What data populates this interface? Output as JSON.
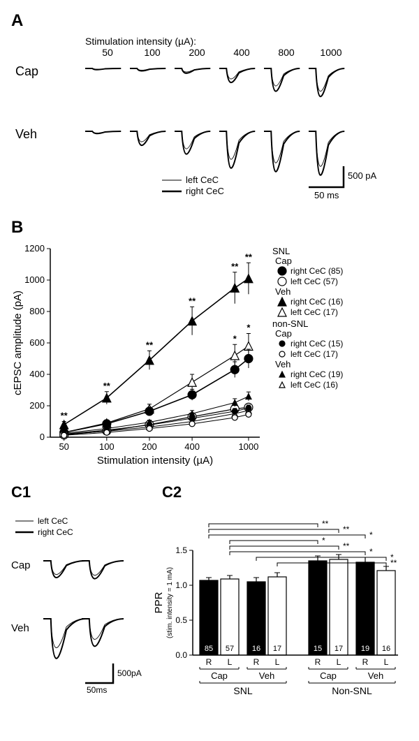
{
  "panelA": {
    "label": "A",
    "stim_header": "Stimulation intensity (µA):",
    "stim_values": [
      "50",
      "100",
      "200",
      "400",
      "800",
      "1000"
    ],
    "row_labels": [
      "Cap",
      "Veh"
    ],
    "legend_thin": "left CeC",
    "legend_thick": "right CeC",
    "scale_y": "500 pA",
    "scale_x": "50 ms",
    "trace_color": "#000000",
    "cap_amps_thin": [
      10,
      20,
      40,
      120,
      200,
      260
    ],
    "cap_amps_thick": [
      14,
      28,
      55,
      160,
      260,
      320
    ],
    "veh_amps_thin": [
      20,
      120,
      200,
      320,
      360,
      400
    ],
    "veh_amps_thick": [
      26,
      160,
      260,
      420,
      460,
      500
    ]
  },
  "panelB": {
    "label": "B",
    "xlabel": "Stimulation intensity (µA)",
    "ylabel": "cEPSC amplitude (pA)",
    "x_ticks": [
      50,
      100,
      200,
      400,
      1000
    ],
    "x_tick_labels": [
      "50",
      "100",
      "200",
      "400",
      "1000"
    ],
    "xlim": [
      40,
      1200
    ],
    "y_ticks": [
      0,
      200,
      400,
      600,
      800,
      1000,
      1200
    ],
    "ylim": [
      0,
      1200
    ],
    "axis_color": "#000000",
    "series": [
      {
        "name": "SNL Veh right",
        "marker": "triangle",
        "fill": "#000000",
        "lw": 1.6,
        "data": [
          [
            50,
            80
          ],
          [
            100,
            250
          ],
          [
            200,
            490
          ],
          [
            400,
            740
          ],
          [
            800,
            950
          ],
          [
            1000,
            1010
          ]
        ],
        "err": [
          20,
          40,
          60,
          90,
          100,
          100
        ],
        "sig": [
          "**",
          "**",
          "**",
          "**",
          "**",
          "**"
        ]
      },
      {
        "name": "SNL Veh left",
        "marker": "triangle",
        "fill": "#ffffff",
        "lw": 1.2,
        "data": [
          [
            50,
            30
          ],
          [
            100,
            90
          ],
          [
            200,
            180
          ],
          [
            400,
            350
          ],
          [
            800,
            520
          ],
          [
            1000,
            580
          ]
        ],
        "err": [
          10,
          20,
          30,
          50,
          70,
          80
        ],
        "sig": [
          "",
          "",
          "",
          "",
          "*",
          "*"
        ]
      },
      {
        "name": "SNL Cap right",
        "marker": "circle",
        "fill": "#000000",
        "lw": 1.6,
        "data": [
          [
            50,
            30
          ],
          [
            100,
            85
          ],
          [
            200,
            165
          ],
          [
            400,
            270
          ],
          [
            800,
            430
          ],
          [
            1000,
            500
          ]
        ],
        "err": [
          8,
          15,
          25,
          35,
          50,
          60
        ]
      },
      {
        "name": "SNL Cap left",
        "marker": "circle",
        "fill": "#ffffff",
        "lw": 1.2,
        "data": [
          [
            50,
            15
          ],
          [
            100,
            40
          ],
          [
            200,
            80
          ],
          [
            400,
            130
          ],
          [
            800,
            180
          ],
          [
            1000,
            190
          ]
        ],
        "err": [
          5,
          8,
          12,
          18,
          20,
          22
        ]
      },
      {
        "name": "non-SNL Veh right",
        "marker": "triangle",
        "fill": "#000000",
        "lw": 1.0,
        "small": true,
        "data": [
          [
            50,
            25
          ],
          [
            100,
            55
          ],
          [
            200,
            95
          ],
          [
            400,
            150
          ],
          [
            800,
            220
          ],
          [
            1000,
            260
          ]
        ],
        "err": [
          6,
          10,
          14,
          20,
          25,
          28
        ]
      },
      {
        "name": "non-SNL Veh left",
        "marker": "triangle",
        "fill": "#ffffff",
        "lw": 1.0,
        "small": true,
        "data": [
          [
            50,
            18
          ],
          [
            100,
            38
          ],
          [
            200,
            65
          ],
          [
            400,
            100
          ],
          [
            800,
            150
          ],
          [
            1000,
            170
          ]
        ],
        "err": [
          5,
          8,
          10,
          14,
          18,
          20
        ]
      },
      {
        "name": "non-SNL Cap right",
        "marker": "circle",
        "fill": "#000000",
        "lw": 1.0,
        "small": true,
        "data": [
          [
            50,
            20
          ],
          [
            100,
            45
          ],
          [
            200,
            78
          ],
          [
            400,
            120
          ],
          [
            800,
            165
          ],
          [
            1000,
            185
          ]
        ],
        "err": [
          5,
          8,
          10,
          14,
          18,
          20
        ]
      },
      {
        "name": "non-SNL Cap left",
        "marker": "circle",
        "fill": "#ffffff",
        "lw": 1.0,
        "small": true,
        "data": [
          [
            50,
            12
          ],
          [
            100,
            30
          ],
          [
            200,
            55
          ],
          [
            400,
            85
          ],
          [
            800,
            125
          ],
          [
            1000,
            145
          ]
        ],
        "err": [
          4,
          6,
          8,
          10,
          14,
          16
        ]
      }
    ],
    "legend_groups": [
      {
        "title": "SNL",
        "items": [
          {
            "sub": "Cap",
            "rows": [
              {
                "marker": "circle",
                "fill": "#000000",
                "big": true,
                "text": "right CeC (85)"
              },
              {
                "marker": "circle",
                "fill": "#ffffff",
                "big": true,
                "text": "left CeC (57)"
              }
            ]
          },
          {
            "sub": "Veh",
            "rows": [
              {
                "marker": "triangle",
                "fill": "#000000",
                "big": true,
                "text": "right CeC (16)"
              },
              {
                "marker": "triangle",
                "fill": "#ffffff",
                "big": true,
                "text": "left CeC (17)"
              }
            ]
          }
        ]
      },
      {
        "title": "non-SNL",
        "items": [
          {
            "sub": "Cap",
            "rows": [
              {
                "marker": "circle",
                "fill": "#000000",
                "text": "right CeC (15)"
              },
              {
                "marker": "circle",
                "fill": "#ffffff",
                "text": "left CeC (17)"
              }
            ]
          },
          {
            "sub": "Veh",
            "rows": [
              {
                "marker": "triangle",
                "fill": "#000000",
                "text": "right CeC (19)"
              },
              {
                "marker": "triangle",
                "fill": "#ffffff",
                "text": "left CeC (16)"
              }
            ]
          }
        ]
      }
    ]
  },
  "panelC1": {
    "label": "C1",
    "legend_thin": "left CeC",
    "legend_thick": "right CeC",
    "row_labels": [
      "Cap",
      "Veh"
    ],
    "scale_y": "500pA",
    "scale_x": "50ms",
    "trace_color": "#000000",
    "cap_a1_thin": 180,
    "cap_a2_thin": 190,
    "cap_a1_thick": 220,
    "cap_a2_thick": 235,
    "veh_a1_thin": 380,
    "veh_a2_thin": 270,
    "veh_a1_thick": 520,
    "veh_a2_thick": 360
  },
  "panelC2": {
    "label": "C2",
    "ylabel": "PPR",
    "ysub": "(stim. intensity = 1 mA)",
    "ylim": [
      0,
      1.5
    ],
    "y_ticks": [
      0.0,
      0.5,
      1.0,
      1.5
    ],
    "y_tick_labels": [
      "0.0",
      "0.5",
      "1.0",
      "1.5"
    ],
    "bars": [
      {
        "group": "SNL",
        "treat": "Cap",
        "side": "R",
        "val": 1.07,
        "err": 0.04,
        "n": "85",
        "fill": "#000000"
      },
      {
        "group": "SNL",
        "treat": "Cap",
        "side": "L",
        "val": 1.09,
        "err": 0.05,
        "n": "57",
        "fill": "#ffffff"
      },
      {
        "group": "SNL",
        "treat": "Veh",
        "side": "R",
        "val": 1.05,
        "err": 0.06,
        "n": "16",
        "fill": "#000000"
      },
      {
        "group": "SNL",
        "treat": "Veh",
        "side": "L",
        "val": 1.12,
        "err": 0.06,
        "n": "17",
        "fill": "#ffffff"
      },
      {
        "group": "Non-SNL",
        "treat": "Cap",
        "side": "R",
        "val": 1.35,
        "err": 0.07,
        "n": "15",
        "fill": "#000000"
      },
      {
        "group": "Non-SNL",
        "treat": "Cap",
        "side": "L",
        "val": 1.37,
        "err": 0.07,
        "n": "17",
        "fill": "#ffffff"
      },
      {
        "group": "Non-SNL",
        "treat": "Veh",
        "side": "R",
        "val": 1.33,
        "err": 0.07,
        "n": "19",
        "fill": "#000000"
      },
      {
        "group": "Non-SNL",
        "treat": "Veh",
        "side": "L",
        "val": 1.21,
        "err": 0.06,
        "n": "16",
        "fill": "#ffffff"
      }
    ],
    "treat_labels": [
      "Cap",
      "Veh",
      "Cap",
      "Veh"
    ],
    "group_labels": [
      "SNL",
      "Non-SNL"
    ],
    "sig_pairs": [
      {
        "a": 0,
        "b": 4,
        "text": "**",
        "level": 4
      },
      {
        "a": 0,
        "b": 5,
        "text": "**",
        "level": 3
      },
      {
        "a": 0,
        "b": 6,
        "text": "*",
        "level": 2
      },
      {
        "a": 1,
        "b": 4,
        "text": "*",
        "level": 1
      },
      {
        "a": 1,
        "b": 5,
        "text": "**",
        "level": 0
      },
      {
        "a": 1,
        "b": 6,
        "text": "*",
        "level": -1
      },
      {
        "a": 2,
        "b": 7,
        "text": "*",
        "level": -2
      },
      {
        "a": 3,
        "b": 7,
        "text": "**",
        "level": -3
      }
    ]
  }
}
